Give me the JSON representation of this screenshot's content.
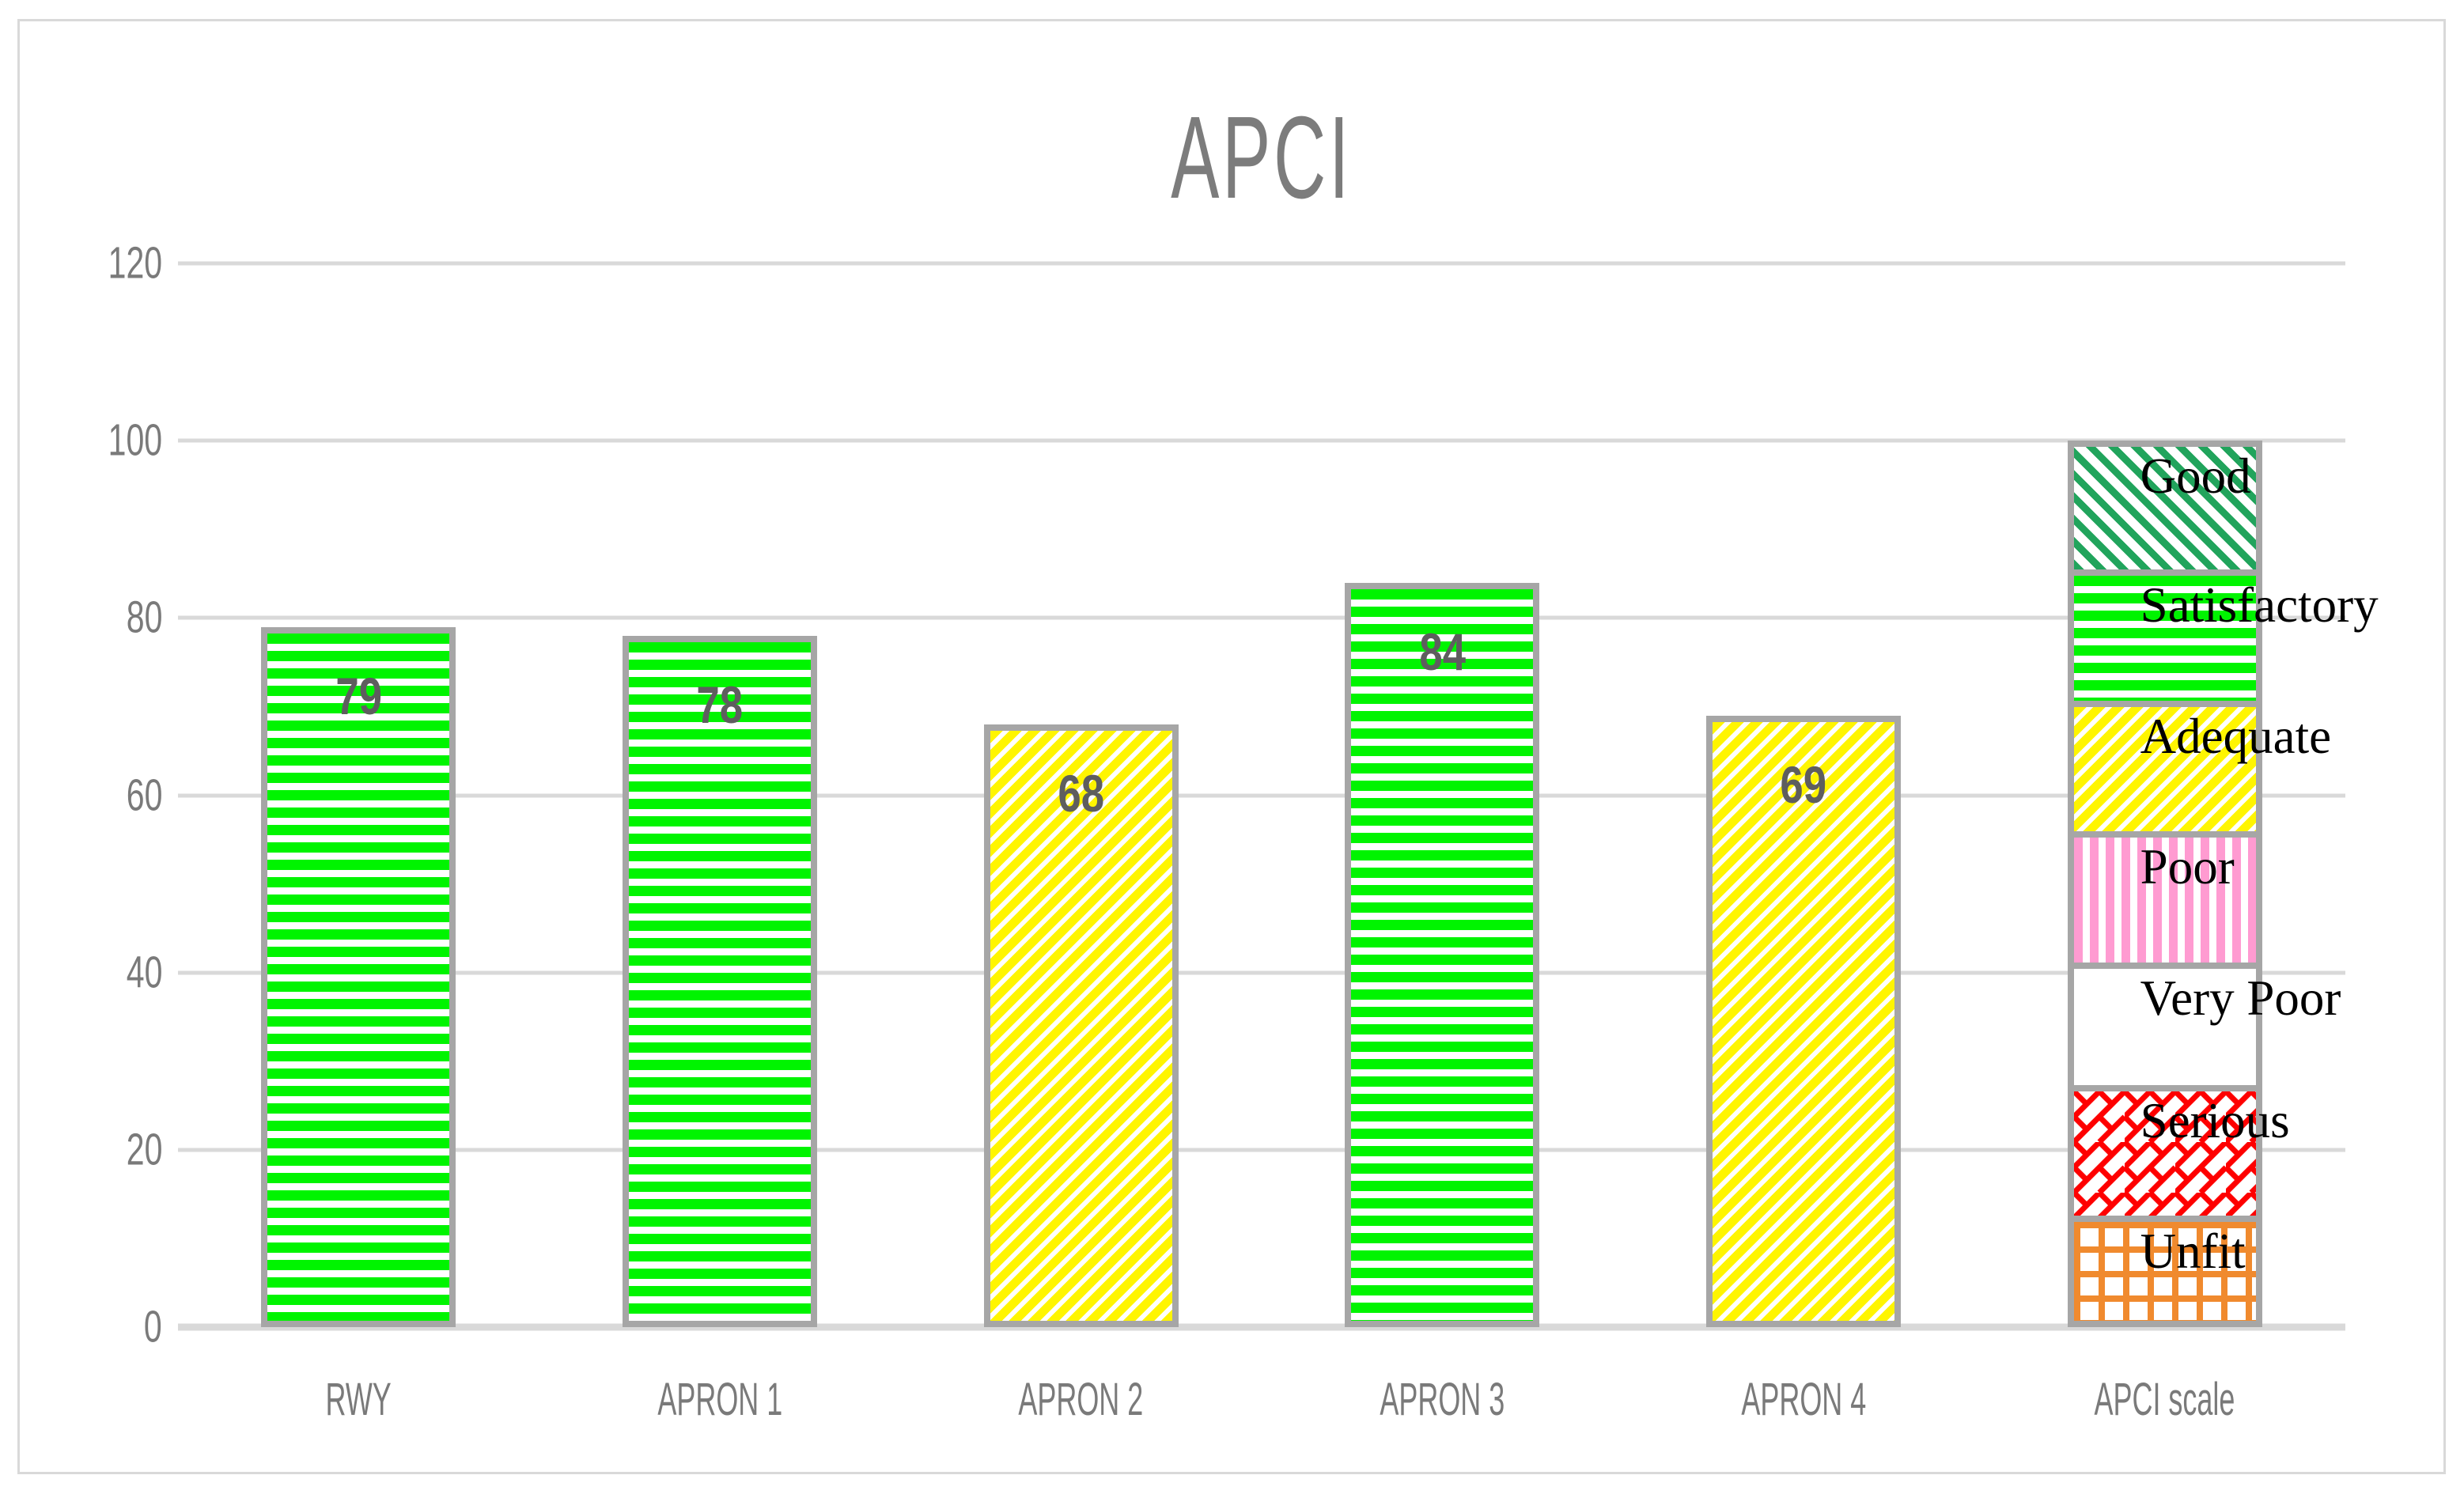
{
  "title": "APCI",
  "chart_data": {
    "type": "bar",
    "title": "APCI",
    "categories": [
      "RWY",
      "APRON 1",
      "APRON 2",
      "APRON 3",
      "APRON 4",
      "APCI scale"
    ],
    "series": [
      {
        "name": "APCI",
        "values": [
          79,
          78,
          68,
          84,
          69
        ]
      }
    ],
    "value_labels": [
      "79",
      "78",
      "68",
      "84",
      "69"
    ],
    "bar_patterns": [
      "green-horizontal",
      "green-horizontal",
      "yellow-diagonal",
      "green-horizontal",
      "yellow-diagonal"
    ],
    "ylim": [
      0,
      120
    ],
    "yticks": [
      0,
      20,
      40,
      60,
      80,
      100,
      120
    ],
    "grid": true,
    "legend_position": "none",
    "scale_column": {
      "category": "APCI scale",
      "total": 100,
      "segments": [
        {
          "label": "Good",
          "from": 86,
          "to": 100,
          "pattern": "green-diagonal"
        },
        {
          "label": "Satisfactory",
          "from": 71,
          "to": 86,
          "pattern": "green-horizontal"
        },
        {
          "label": "Adequate",
          "from": 56,
          "to": 71,
          "pattern": "yellow-diagonal"
        },
        {
          "label": "Poor",
          "from": 41,
          "to": 56,
          "pattern": "pink-vertical"
        },
        {
          "label": "Very Poor",
          "from": 27,
          "to": 41,
          "pattern": "white"
        },
        {
          "label": "Serious",
          "from": 12,
          "to": 27,
          "pattern": "red-brick"
        },
        {
          "label": "Unfit",
          "from": 0,
          "to": 12,
          "pattern": "orange-grid"
        }
      ]
    },
    "colors": {
      "bright-green": "#00F400",
      "yellow": "#FFF500",
      "scale-green": "#21A45C",
      "pink": "#FF9BD1",
      "red": "#FE0000",
      "orange": "#F08A2E",
      "bar-border": "#A6A6A6",
      "gridline": "#D9D9D9",
      "label-gray": "#7A7A7A",
      "value-gray": "#5E5E5E"
    }
  }
}
